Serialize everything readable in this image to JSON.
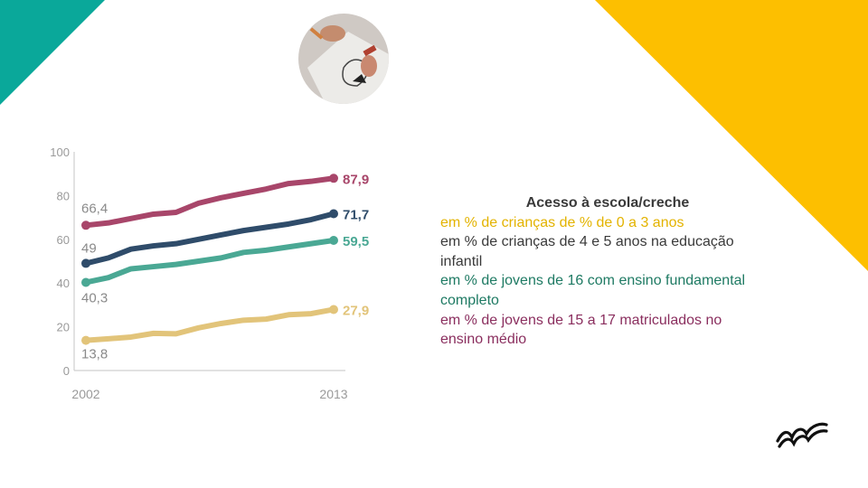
{
  "theme": {
    "teal": "#0aa89a",
    "yellow": "#fdbf00",
    "series_colors": [
      "#a8466a",
      "#2f4c6a",
      "#4aa894",
      "#e2c47a"
    ]
  },
  "legend": {
    "title": "Acesso à escola/creche",
    "items": [
      {
        "text": "em % de crianças de % de 0 a 3 anos",
        "color": "#e3b300"
      },
      {
        "text": "em % de crianças de 4 e 5 anos na educação infantil",
        "color": "#3a3a3a"
      },
      {
        "text": "em % de jovens de 16 com ensino fundamental completo",
        "color": "#1e7a63"
      },
      {
        "text": "em % de jovens de 15 a 17 matriculados no ensino médio",
        "color": "#8a2e5e"
      }
    ]
  },
  "chart_data": {
    "type": "line",
    "x": [
      "2002",
      "2003",
      "2004",
      "2005",
      "2006",
      "2007",
      "2008",
      "2009",
      "2010",
      "2011",
      "2012",
      "2013"
    ],
    "xticks": [
      "2002",
      "2013"
    ],
    "ylim": [
      0,
      100
    ],
    "yticks": [
      "0",
      "20",
      "40",
      "60",
      "80",
      "100"
    ],
    "series": [
      {
        "values": [
          66.4,
          67.5,
          69.5,
          71.5,
          72.3,
          76.5,
          79,
          81,
          83,
          85.5,
          86.5,
          87.9
        ],
        "start_label": "66,4",
        "end_label": "87,9",
        "color": "#a8466a"
      },
      {
        "values": [
          49,
          51.5,
          55.5,
          57,
          58,
          60,
          62,
          64,
          65.5,
          67,
          69,
          71.7
        ],
        "start_label": "49",
        "end_label": "71,7",
        "color": "#2f4c6a"
      },
      {
        "values": [
          40.3,
          42.5,
          46.5,
          47.5,
          48.5,
          50,
          51.5,
          54,
          55,
          56.5,
          58,
          59.5
        ],
        "start_label": "40,3",
        "end_label": "59,5",
        "color": "#4aa894"
      },
      {
        "values": [
          13.8,
          14.5,
          15.3,
          17,
          16.8,
          19.5,
          21.5,
          23,
          23.5,
          25.5,
          26,
          27.9
        ],
        "start_label": "13,8",
        "end_label": "27,9",
        "color": "#e2c47a"
      }
    ],
    "grid": false
  }
}
